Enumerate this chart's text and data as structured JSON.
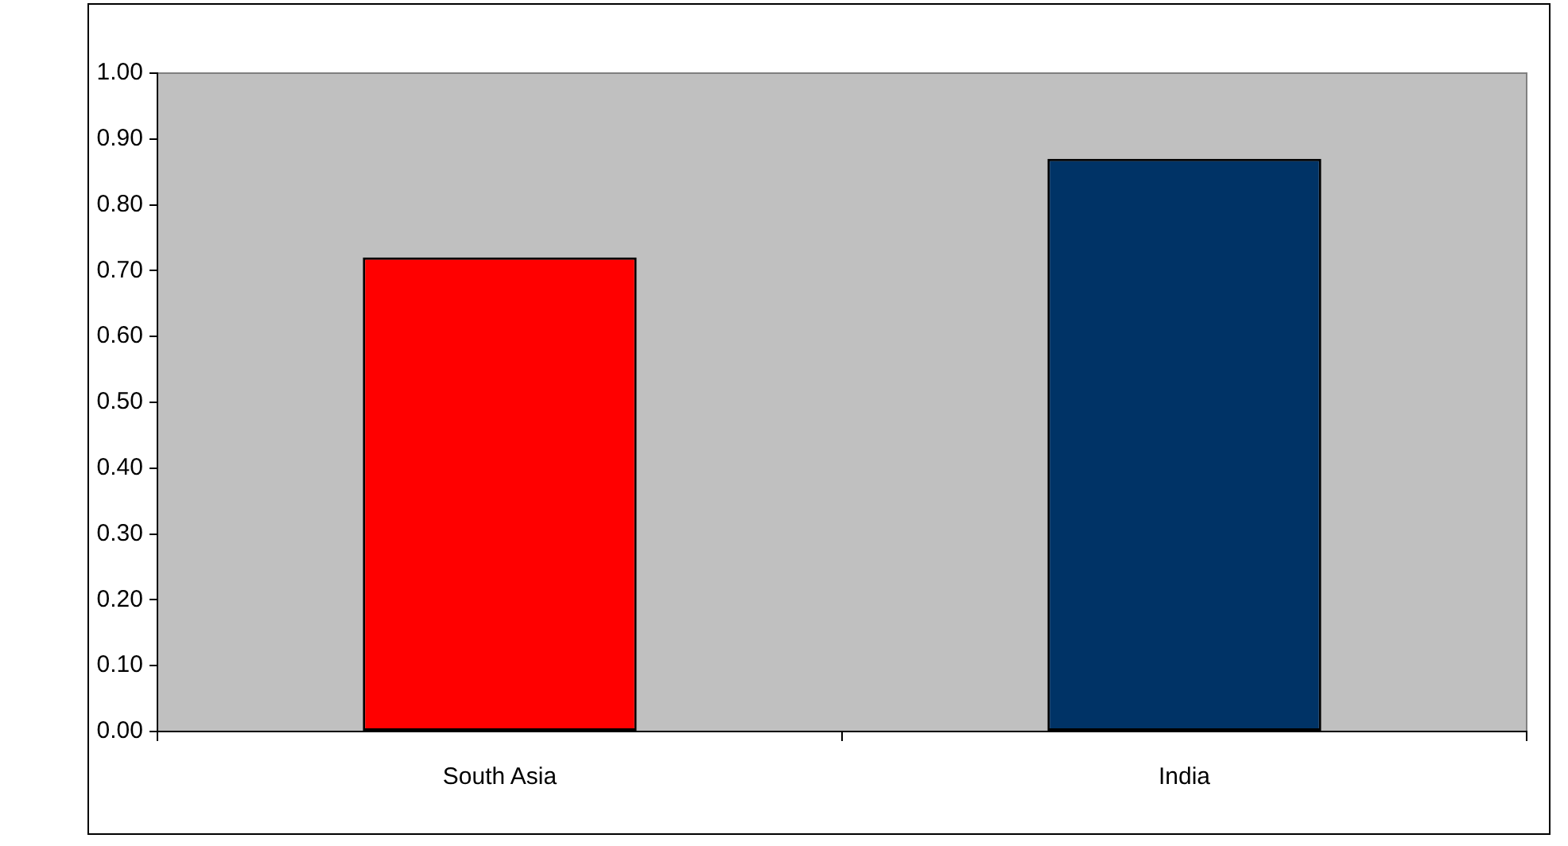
{
  "chart_data": {
    "type": "bar",
    "categories": [
      "South Asia",
      "India"
    ],
    "values": [
      0.72,
      0.87
    ],
    "colors": [
      "#ff0000",
      "#003366"
    ],
    "ylim": [
      0,
      1
    ],
    "yticks": [
      {
        "value": 0,
        "label": "0.00"
      },
      {
        "value": 0.1,
        "label": "0.10"
      },
      {
        "value": 0.2,
        "label": "0.20"
      },
      {
        "value": 0.3,
        "label": "0.30"
      },
      {
        "value": 0.4,
        "label": "0.40"
      },
      {
        "value": 0.5,
        "label": "0.50"
      },
      {
        "value": 0.6,
        "label": "0.60"
      },
      {
        "value": 0.7,
        "label": "0.70"
      },
      {
        "value": 0.8,
        "label": "0.80"
      },
      {
        "value": 0.9,
        "label": "0.90"
      },
      {
        "value": 1,
        "label": "1.00"
      }
    ],
    "grid": false
  }
}
